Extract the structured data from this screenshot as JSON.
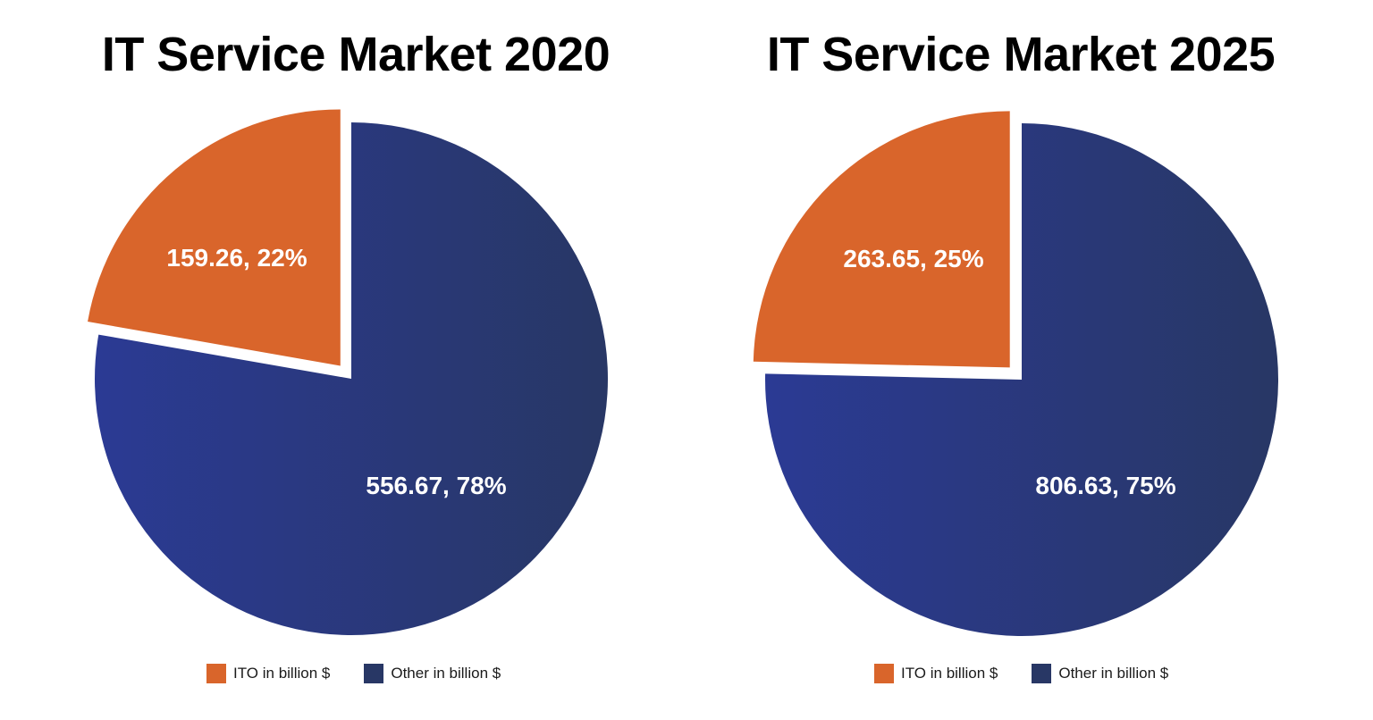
{
  "colors": {
    "ito": "#D9652B",
    "other_light": "#2B3A94",
    "other_dark": "#283765",
    "background": "#FFFFFF"
  },
  "chart_data": [
    {
      "type": "pie",
      "title": "IT Service Market 2020",
      "legend_position": "bottom",
      "slices": [
        {
          "name": "ITO in billion $",
          "value": 159.26,
          "percent": 22,
          "label": "159.26, 22%",
          "exploded": true
        },
        {
          "name": "Other in billion $",
          "value": 556.67,
          "percent": 78,
          "label": "556.67, 78%",
          "exploded": false
        }
      ]
    },
    {
      "type": "pie",
      "title": "IT Service Market 2025",
      "legend_position": "bottom",
      "slices": [
        {
          "name": "ITO in billion $",
          "value": 263.65,
          "percent": 25,
          "label": "263.65, 25%",
          "exploded": true
        },
        {
          "name": "Other in billion $",
          "value": 806.63,
          "percent": 75,
          "label": "806.63, 75%",
          "exploded": false
        }
      ]
    }
  ]
}
